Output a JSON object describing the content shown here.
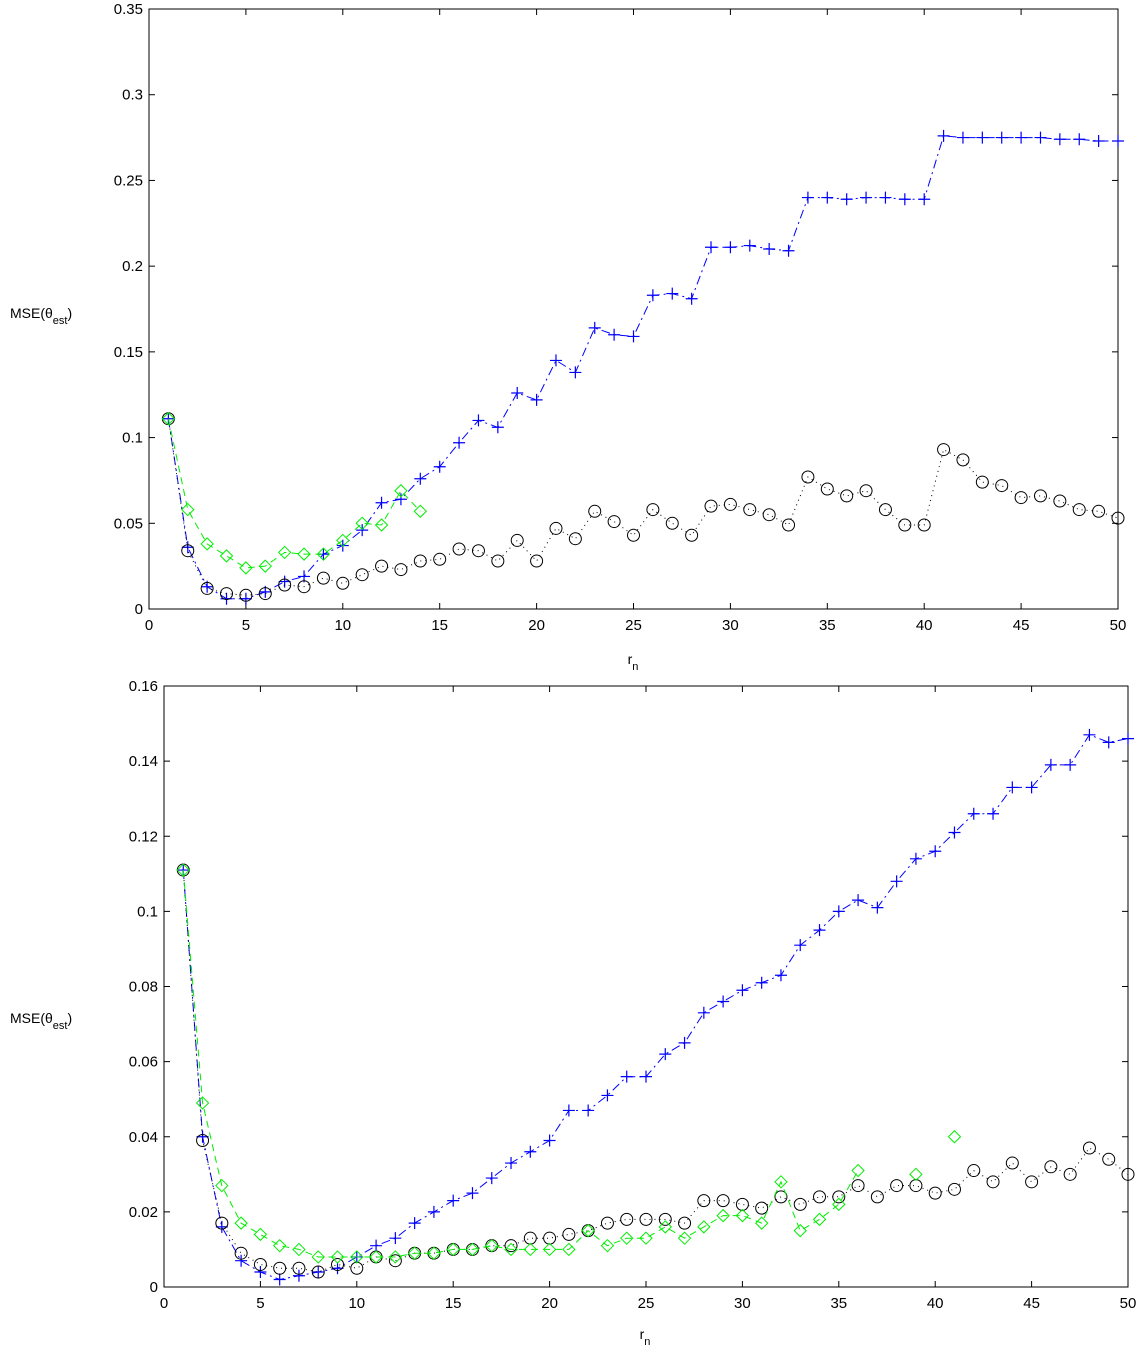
{
  "chart_data": [
    {
      "type": "line",
      "xlabel": "r",
      "xlabel_sub": "n",
      "ylabel": "MSE(θ",
      "ylabel_sub": "est",
      "ylabel_close": ")",
      "xlim": [
        0,
        50
      ],
      "ylim": [
        0,
        0.35
      ],
      "xticks": [
        0,
        5,
        10,
        15,
        20,
        25,
        30,
        35,
        40,
        45,
        50
      ],
      "yticks": [
        0,
        0.05,
        0.1,
        0.15,
        0.2,
        0.25,
        0.3,
        0.35
      ],
      "ytick_labels": [
        "0",
        "0.05",
        "0.1",
        "0.15",
        "0.2",
        "0.25",
        "0.3",
        "0.35"
      ],
      "grid": false,
      "series": [
        {
          "marker": "plus",
          "line": "dashdot",
          "color": "#0000ff",
          "x": [
            1,
            2,
            3,
            4,
            5,
            6,
            7,
            8,
            9,
            10,
            11,
            12,
            13,
            14,
            15,
            16,
            17,
            18,
            19,
            20,
            21,
            22,
            23,
            24,
            25,
            26,
            27,
            28,
            29,
            30,
            31,
            32,
            33,
            34,
            35,
            36,
            37,
            38,
            39,
            40,
            41,
            42,
            43,
            44,
            45,
            46,
            47,
            48,
            49,
            50
          ],
          "y": [
            0.111,
            0.036,
            0.013,
            0.006,
            0.006,
            0.01,
            0.016,
            0.019,
            0.032,
            0.037,
            0.046,
            0.062,
            0.064,
            0.076,
            0.083,
            0.097,
            0.11,
            0.106,
            0.126,
            0.122,
            0.145,
            0.138,
            0.164,
            0.16,
            0.159,
            0.183,
            0.184,
            0.181,
            0.211,
            0.211,
            0.212,
            0.21,
            0.209,
            0.24,
            0.24,
            0.239,
            0.24,
            0.24,
            0.239,
            0.239,
            0.276,
            0.275,
            0.275,
            0.275,
            0.275,
            0.275,
            0.274,
            0.274,
            0.273,
            0.273
          ]
        },
        {
          "marker": "circle",
          "line": "dotted",
          "color": "#000000",
          "x": [
            1,
            2,
            3,
            4,
            5,
            6,
            7,
            8,
            9,
            10,
            11,
            12,
            13,
            14,
            15,
            16,
            17,
            18,
            19,
            20,
            21,
            22,
            23,
            24,
            25,
            26,
            27,
            28,
            29,
            30,
            31,
            32,
            33,
            34,
            35,
            36,
            37,
            38,
            39,
            40,
            41,
            42,
            43,
            44,
            45,
            46,
            47,
            48,
            49,
            50
          ],
          "y": [
            0.111,
            0.034,
            0.012,
            0.009,
            0.008,
            0.009,
            0.014,
            0.013,
            0.018,
            0.015,
            0.02,
            0.025,
            0.023,
            0.028,
            0.029,
            0.035,
            0.034,
            0.028,
            0.04,
            0.028,
            0.047,
            0.041,
            0.057,
            0.051,
            0.043,
            0.058,
            0.05,
            0.043,
            0.06,
            0.061,
            0.058,
            0.055,
            0.049,
            0.077,
            0.07,
            0.066,
            0.069,
            0.058,
            0.049,
            0.049,
            0.093,
            0.087,
            0.074,
            0.072,
            0.065,
            0.066,
            0.063,
            0.058,
            0.057,
            0.053
          ]
        },
        {
          "marker": "diamond",
          "line": "dashed",
          "color": "#00ee00",
          "x": [
            1,
            2,
            3,
            4,
            5,
            6,
            7,
            8,
            9,
            10,
            11,
            12,
            13,
            14
          ],
          "y": [
            0.111,
            0.058,
            0.038,
            0.031,
            0.024,
            0.025,
            0.033,
            0.032,
            0.032,
            0.04,
            0.05,
            0.049,
            0.069,
            0.057
          ]
        }
      ]
    },
    {
      "type": "line",
      "xlabel": "r",
      "xlabel_sub": "n",
      "ylabel": "MSE(θ",
      "ylabel_sub": "est",
      "ylabel_close": ")",
      "xlim": [
        0,
        50
      ],
      "ylim": [
        0,
        0.16
      ],
      "xticks": [
        0,
        5,
        10,
        15,
        20,
        25,
        30,
        35,
        40,
        45,
        50
      ],
      "yticks": [
        0,
        0.02,
        0.04,
        0.06,
        0.08,
        0.1,
        0.12,
        0.14,
        0.16
      ],
      "ytick_labels": [
        "0",
        "0.02",
        "0.04",
        "0.06",
        "0.08",
        "0.1",
        "0.12",
        "0.14",
        "0.16"
      ],
      "grid": false,
      "series": [
        {
          "marker": "plus",
          "line": "dashdot",
          "color": "#0000ff",
          "x": [
            1,
            2,
            3,
            4,
            5,
            6,
            7,
            8,
            9,
            10,
            11,
            12,
            13,
            14,
            15,
            16,
            17,
            18,
            19,
            20,
            21,
            22,
            23,
            24,
            25,
            26,
            27,
            28,
            29,
            30,
            31,
            32,
            33,
            34,
            35,
            36,
            37,
            38,
            39,
            40,
            41,
            42,
            43,
            44,
            45,
            46,
            47,
            48,
            49,
            50
          ],
          "y": [
            0.111,
            0.04,
            0.016,
            0.007,
            0.004,
            0.002,
            0.003,
            0.004,
            0.005,
            0.008,
            0.011,
            0.013,
            0.017,
            0.02,
            0.023,
            0.025,
            0.029,
            0.033,
            0.036,
            0.039,
            0.047,
            0.047,
            0.051,
            0.056,
            0.056,
            0.062,
            0.065,
            0.073,
            0.076,
            0.079,
            0.081,
            0.083,
            0.091,
            0.095,
            0.1,
            0.103,
            0.101,
            0.108,
            0.114,
            0.116,
            0.121,
            0.126,
            0.126,
            0.133,
            0.133,
            0.139,
            0.139,
            0.147,
            0.145,
            0.146
          ]
        },
        {
          "marker": "circle",
          "line": "dotted",
          "color": "#000000",
          "x": [
            1,
            2,
            3,
            4,
            5,
            6,
            7,
            8,
            9,
            10,
            11,
            12,
            13,
            14,
            15,
            16,
            17,
            18,
            19,
            20,
            21,
            22,
            23,
            24,
            25,
            26,
            27,
            28,
            29,
            30,
            31,
            32,
            33,
            34,
            35,
            36,
            37,
            38,
            39,
            40,
            41,
            42,
            43,
            44,
            45,
            46,
            47,
            48,
            49,
            50
          ],
          "y": [
            0.111,
            0.039,
            0.017,
            0.009,
            0.006,
            0.005,
            0.005,
            0.004,
            0.006,
            0.005,
            0.008,
            0.007,
            0.009,
            0.009,
            0.01,
            0.01,
            0.011,
            0.011,
            0.013,
            0.013,
            0.014,
            0.015,
            0.017,
            0.018,
            0.018,
            0.018,
            0.017,
            0.023,
            0.023,
            0.022,
            0.021,
            0.024,
            0.022,
            0.024,
            0.024,
            0.027,
            0.024,
            0.027,
            0.027,
            0.025,
            0.026,
            0.031,
            0.028,
            0.033,
            0.028,
            0.032,
            0.03,
            0.037,
            0.034,
            0.03
          ]
        },
        {
          "marker": "diamond",
          "line": "dashed",
          "color": "#00ee00",
          "x": [
            1,
            2,
            3,
            4,
            5,
            6,
            7,
            8,
            9,
            10,
            11,
            12,
            13,
            14,
            15,
            16,
            17,
            18,
            19,
            20,
            21,
            22,
            23,
            24,
            25,
            26,
            27,
            28,
            29,
            30,
            31,
            32,
            33,
            34,
            35,
            36,
            37,
            38,
            39,
            40,
            41
          ],
          "y": [
            0.111,
            0.049,
            0.027,
            0.017,
            0.014,
            0.011,
            0.01,
            0.008,
            0.008,
            0.008,
            0.008,
            0.008,
            0.009,
            0.009,
            0.01,
            0.01,
            0.011,
            0.01,
            0.01,
            0.01,
            0.01,
            0.015,
            0.011,
            0.013,
            0.013,
            0.016,
            0.013,
            0.016,
            0.019,
            0.019,
            0.017,
            0.028,
            0.015,
            0.018,
            0.022,
            0.031,
            null,
            null,
            0.03,
            null,
            0.04
          ]
        }
      ]
    }
  ]
}
